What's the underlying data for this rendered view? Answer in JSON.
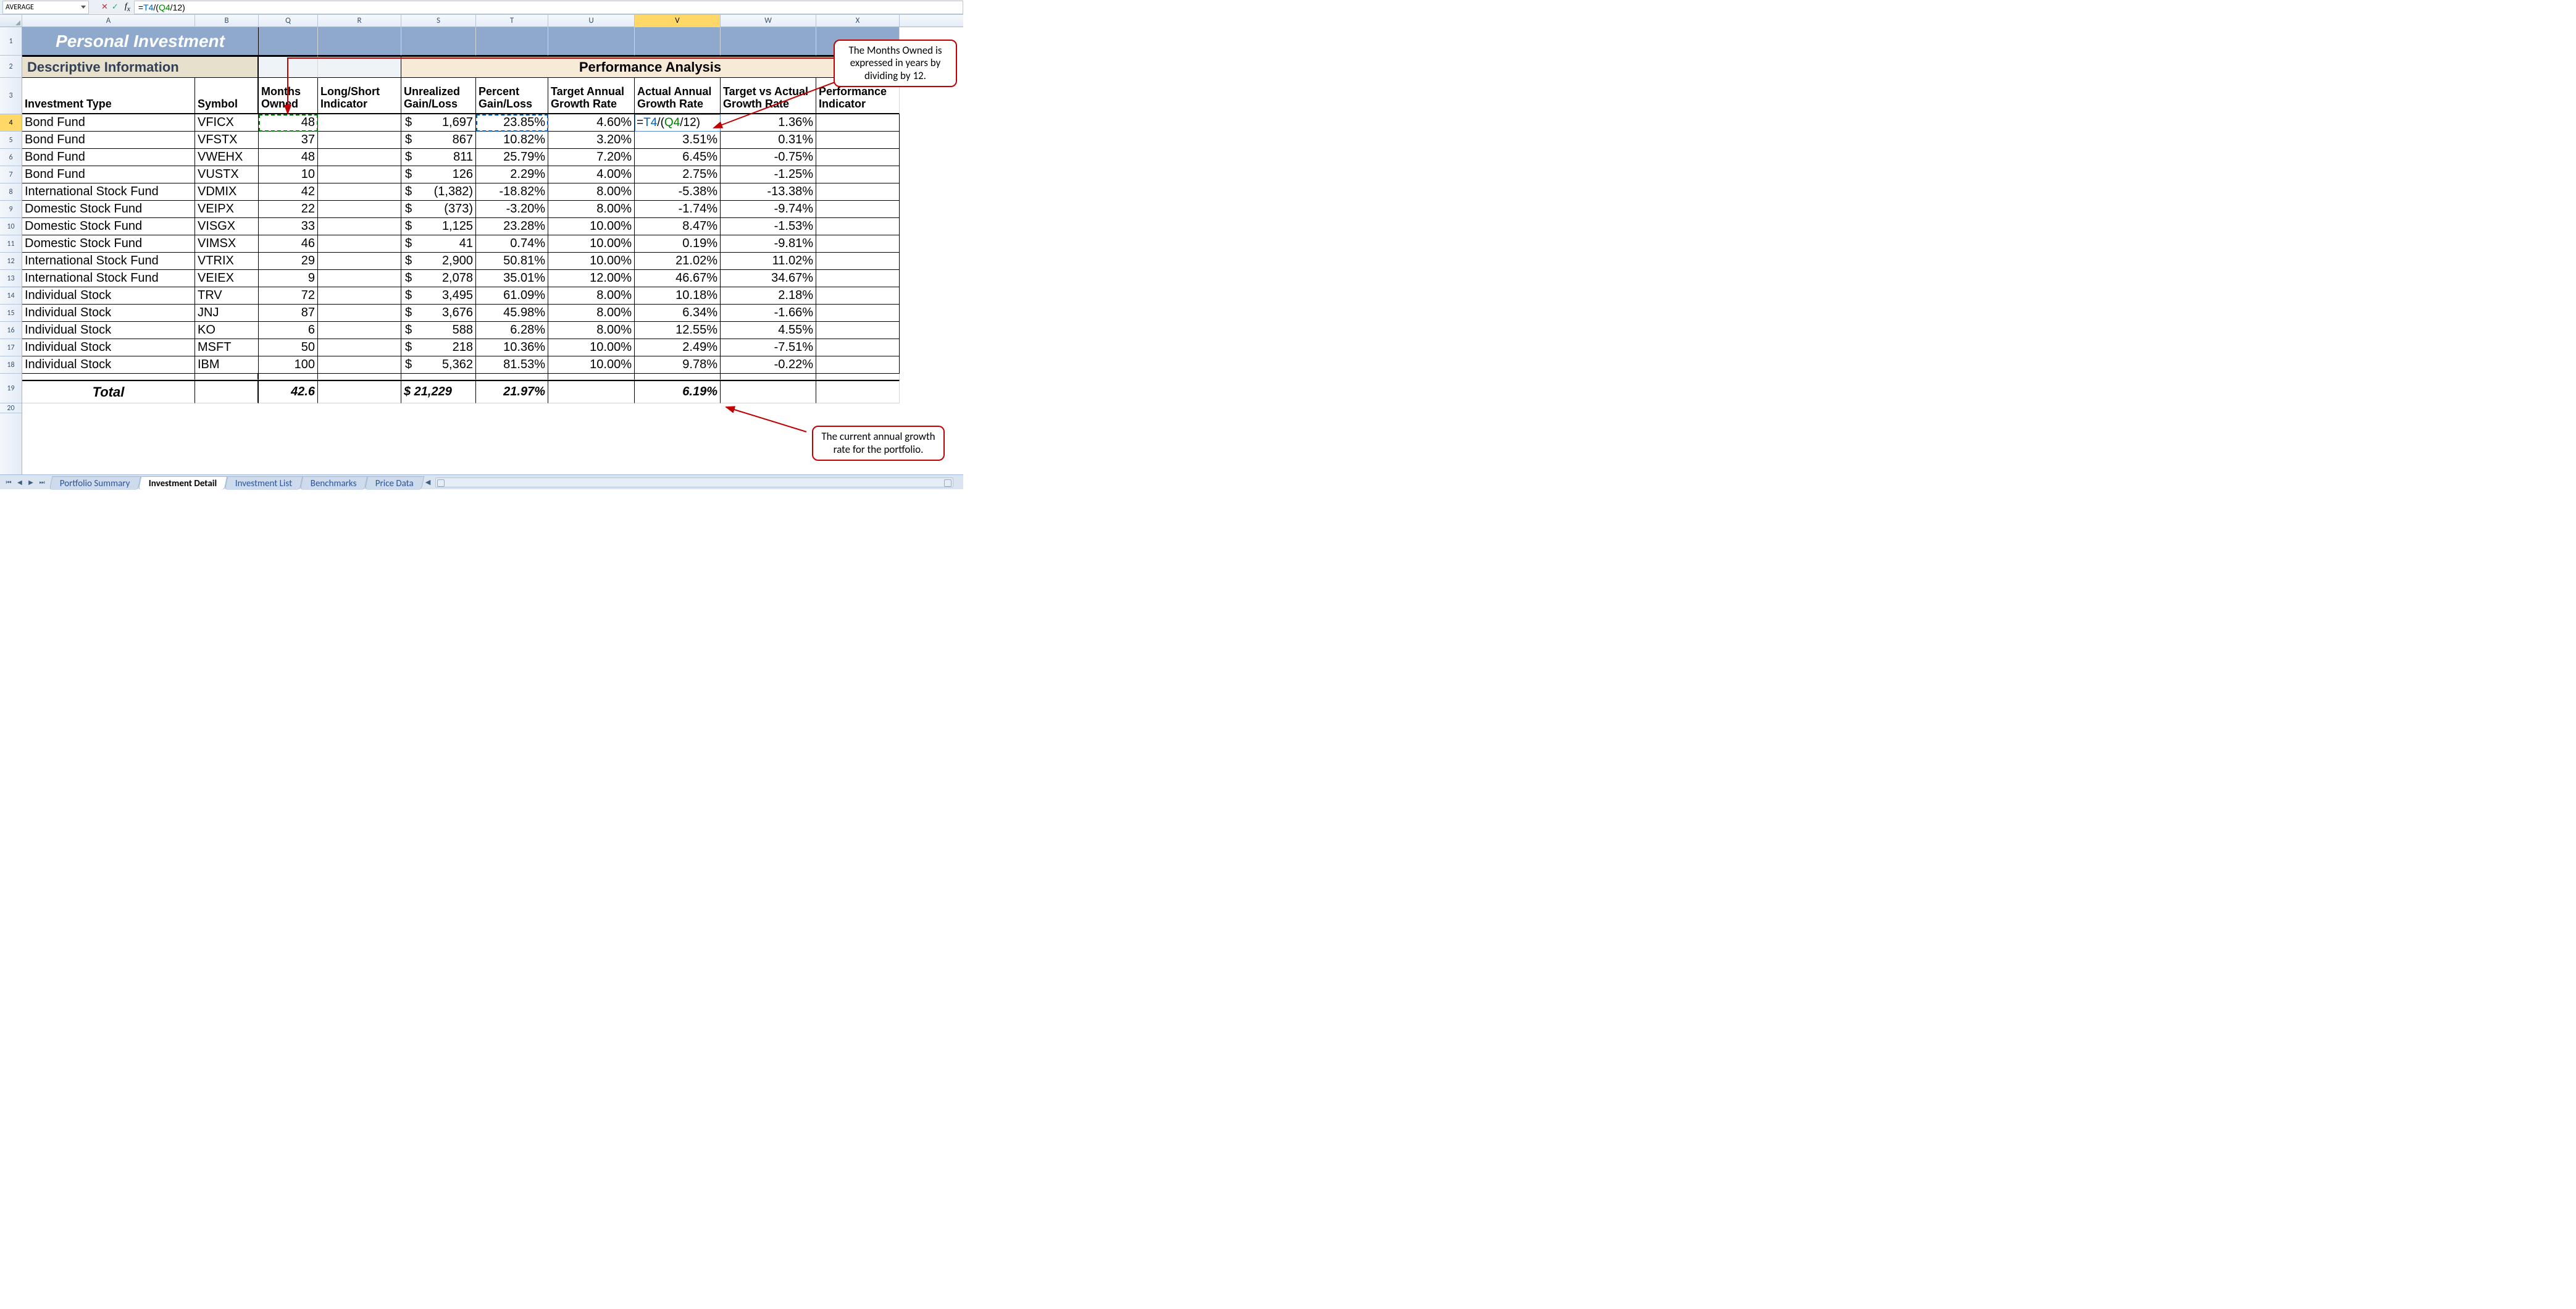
{
  "formula_bar": {
    "name_box": "AVERAGE",
    "formula": "=T4/(Q4/12)",
    "formula_parts": [
      {
        "t": "=",
        "c": "c-black"
      },
      {
        "t": "T4",
        "c": "c-blue"
      },
      {
        "t": "/(",
        "c": "c-black"
      },
      {
        "t": "Q4",
        "c": "c-green"
      },
      {
        "t": "/12)",
        "c": "c-black"
      }
    ]
  },
  "columns": [
    {
      "letter": "A",
      "w": "w-A"
    },
    {
      "letter": "B",
      "w": "w-B"
    },
    {
      "letter": "Q",
      "w": "w-Q"
    },
    {
      "letter": "R",
      "w": "w-R"
    },
    {
      "letter": "S",
      "w": "w-S"
    },
    {
      "letter": "T",
      "w": "w-T"
    },
    {
      "letter": "U",
      "w": "w-U"
    },
    {
      "letter": "V",
      "w": "w-V",
      "active": true
    },
    {
      "letter": "W",
      "w": "w-W"
    },
    {
      "letter": "X",
      "w": "w-X"
    }
  ],
  "row_numbers": [
    1,
    2,
    3,
    4,
    5,
    6,
    7,
    8,
    9,
    10,
    11,
    12,
    13,
    14,
    15,
    16,
    17,
    18,
    19,
    20
  ],
  "active_row": 4,
  "title": "Personal Investment",
  "section_headers": {
    "descriptive": "Descriptive Information",
    "performance": "Performance Analysis"
  },
  "col_labels": {
    "A": "Investment Type",
    "B": "Symbol",
    "Q": "Months Owned",
    "R": "Long/Short Indicator",
    "S": "Unrealized Gain/Loss",
    "T": "Percent Gain/Loss",
    "U": "Target Annual Growth Rate",
    "V": "Actual Annual Growth Rate",
    "W": "Target vs Actual Growth Rate",
    "X": "Performance Indicator"
  },
  "rows": [
    {
      "A": "Bond Fund",
      "B": "VFICX",
      "Q": "48",
      "S": "1,697",
      "Sneg": false,
      "T": "23.85%",
      "U": "4.60%",
      "V": "=T4/(Q4/12)",
      "V_editing": true,
      "W": "1.36%"
    },
    {
      "A": "Bond Fund",
      "B": "VFSTX",
      "Q": "37",
      "S": "867",
      "Sneg": false,
      "T": "10.82%",
      "U": "3.20%",
      "V": "3.51%",
      "W": "0.31%"
    },
    {
      "A": "Bond Fund",
      "B": "VWEHX",
      "Q": "48",
      "S": "811",
      "Sneg": false,
      "T": "25.79%",
      "U": "7.20%",
      "V": "6.45%",
      "W": "-0.75%"
    },
    {
      "A": "Bond Fund",
      "B": "VUSTX",
      "Q": "10",
      "S": "126",
      "Sneg": false,
      "T": "2.29%",
      "U": "4.00%",
      "V": "2.75%",
      "W": "-1.25%"
    },
    {
      "A": "International Stock Fund",
      "B": "VDMIX",
      "Q": "42",
      "S": "1,382",
      "Sneg": true,
      "T": "-18.82%",
      "U": "8.00%",
      "V": "-5.38%",
      "W": "-13.38%"
    },
    {
      "A": "Domestic Stock Fund",
      "B": "VEIPX",
      "Q": "22",
      "S": "373",
      "Sneg": true,
      "T": "-3.20%",
      "U": "8.00%",
      "V": "-1.74%",
      "W": "-9.74%"
    },
    {
      "A": "Domestic Stock Fund",
      "B": "VISGX",
      "Q": "33",
      "S": "1,125",
      "Sneg": false,
      "T": "23.28%",
      "U": "10.00%",
      "V": "8.47%",
      "W": "-1.53%"
    },
    {
      "A": "Domestic Stock Fund",
      "B": "VIMSX",
      "Q": "46",
      "S": "41",
      "Sneg": false,
      "T": "0.74%",
      "U": "10.00%",
      "V": "0.19%",
      "W": "-9.81%"
    },
    {
      "A": "International Stock Fund",
      "B": "VTRIX",
      "Q": "29",
      "S": "2,900",
      "Sneg": false,
      "T": "50.81%",
      "U": "10.00%",
      "V": "21.02%",
      "W": "11.02%"
    },
    {
      "A": "International Stock Fund",
      "B": "VEIEX",
      "Q": "9",
      "S": "2,078",
      "Sneg": false,
      "T": "35.01%",
      "U": "12.00%",
      "V": "46.67%",
      "W": "34.67%"
    },
    {
      "A": "Individual Stock",
      "B": "TRV",
      "Q": "72",
      "S": "3,495",
      "Sneg": false,
      "T": "61.09%",
      "U": "8.00%",
      "V": "10.18%",
      "W": "2.18%"
    },
    {
      "A": "Individual Stock",
      "B": "JNJ",
      "Q": "87",
      "S": "3,676",
      "Sneg": false,
      "T": "45.98%",
      "U": "8.00%",
      "V": "6.34%",
      "W": "-1.66%"
    },
    {
      "A": "Individual Stock",
      "B": "KO",
      "Q": "6",
      "S": "588",
      "Sneg": false,
      "T": "6.28%",
      "U": "8.00%",
      "V": "12.55%",
      "W": "4.55%"
    },
    {
      "A": "Individual Stock",
      "B": "MSFT",
      "Q": "50",
      "S": "218",
      "Sneg": false,
      "T": "10.36%",
      "U": "10.00%",
      "V": "2.49%",
      "W": "-7.51%"
    },
    {
      "A": "Individual Stock",
      "B": "IBM",
      "Q": "100",
      "S": "5,362",
      "Sneg": false,
      "T": "81.53%",
      "U": "10.00%",
      "V": "9.78%",
      "W": "-0.22%"
    }
  ],
  "total": {
    "label": "Total",
    "Q": "42.6",
    "S": "$ 21,229",
    "T": "21.97%",
    "V": "6.19%"
  },
  "callouts": {
    "top": "The Months Owned is expressed in years by dividing by 12.",
    "bottom": "The current annual growth rate for the portfolio."
  },
  "sheet_tabs": [
    {
      "label": "Portfolio Summary",
      "active": false
    },
    {
      "label": "Investment Detail",
      "active": true
    },
    {
      "label": "Investment List",
      "active": false
    },
    {
      "label": "Benchmarks",
      "active": false
    },
    {
      "label": "Price Data",
      "active": false
    }
  ],
  "colors": {
    "header_bg": "#8ea9cb",
    "desc_bg": "#e6e0cc",
    "perf_bg": "#f7ead6",
    "active_col": "#ffd867",
    "callout_border": "#c00000"
  }
}
